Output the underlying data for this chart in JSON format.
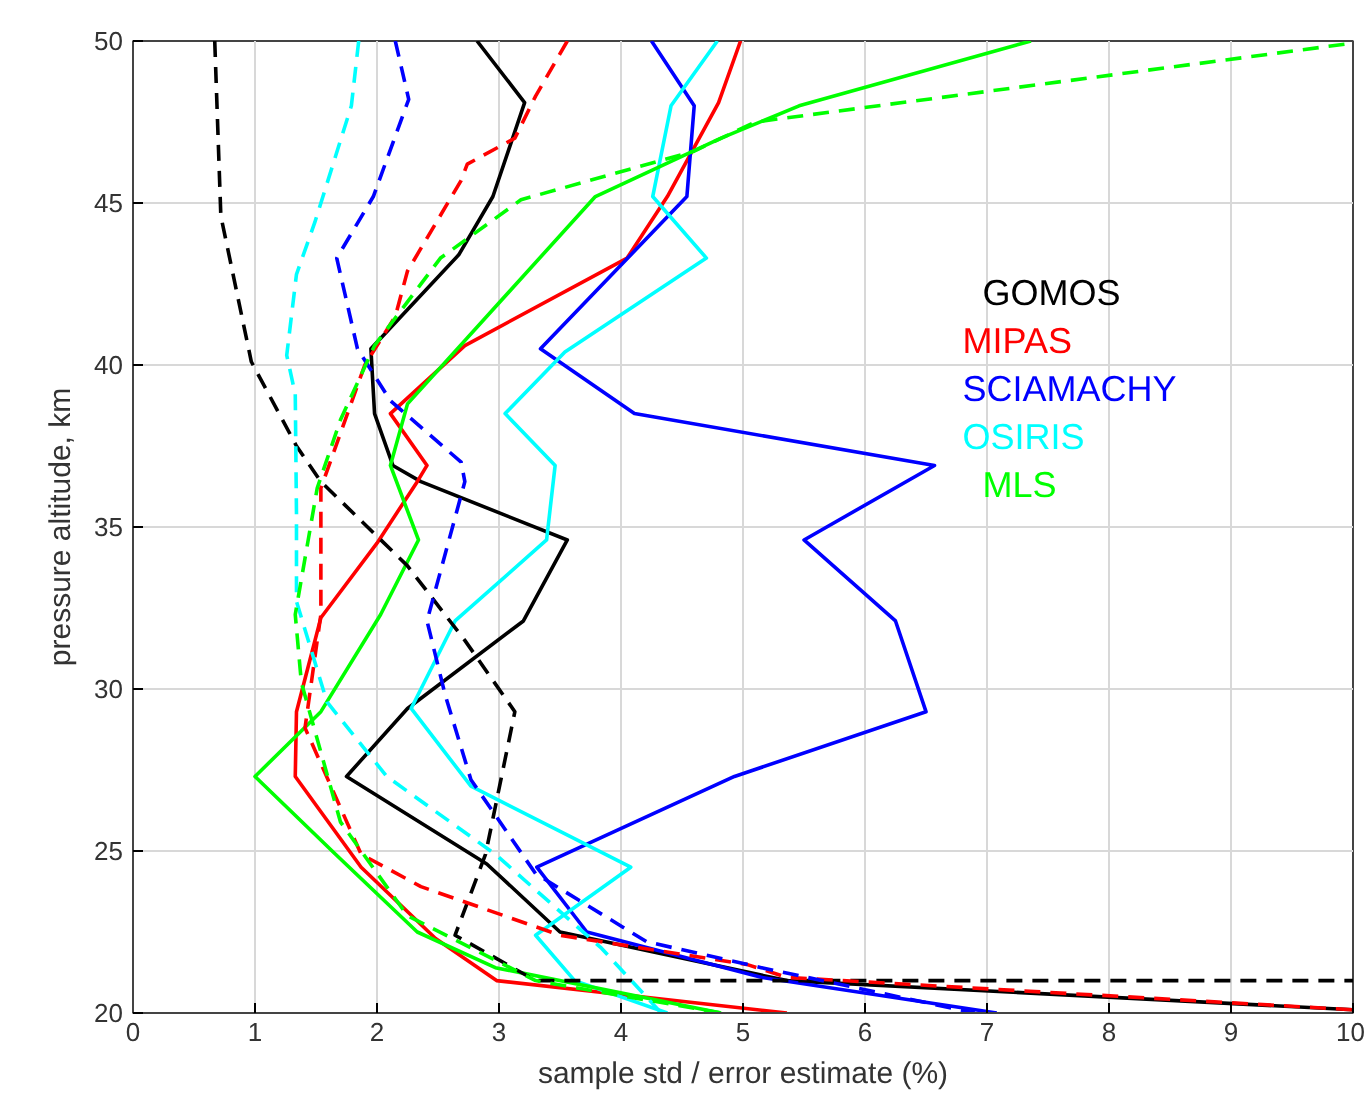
{
  "chart_data": {
    "type": "line",
    "xlabel": "sample std / error estimate (%)",
    "ylabel": "pressure altitude, km",
    "xlim": [
      0,
      10
    ],
    "ylim": [
      20,
      50
    ],
    "xticks": [
      0,
      1,
      2,
      3,
      4,
      5,
      6,
      7,
      8,
      9,
      10
    ],
    "yticks": [
      20,
      25,
      30,
      35,
      40,
      45,
      50
    ],
    "grid": true,
    "legend": "right",
    "marker": "none",
    "series": [
      {
        "name": "GOMOS",
        "color": "#000000",
        "line_style": "solid",
        "x": [
          2.82,
          3.21,
          2.95,
          2.67,
          1.95,
          1.98,
          2.13,
          2.36,
          3.56,
          3.2,
          2.25,
          1.75,
          2.9,
          3.5,
          5.36,
          10
        ],
        "values": [
          50,
          48.1,
          45.2,
          43.4,
          40.5,
          38.5,
          36.9,
          36.4,
          34.6,
          32.1,
          29.4,
          27.3,
          24.6,
          22.5,
          21.0,
          20.1
        ]
      },
      {
        "name": "MIPAS",
        "color": "#ff0000",
        "line_style": "solid",
        "x": [
          4.98,
          4.8,
          4.38,
          4.05,
          2.72,
          2.11,
          2.41,
          2.33,
          2.0,
          1.54,
          1.34,
          1.33,
          1.87,
          2.48,
          2.98,
          5.36
        ],
        "values": [
          50,
          48.1,
          45.2,
          43.3,
          40.6,
          38.5,
          36.9,
          36.4,
          34.5,
          32.2,
          29.3,
          27.3,
          24.5,
          22.3,
          21.0,
          20.0
        ]
      },
      {
        "name": "SCIAMACHY",
        "color": "#0000ff",
        "line_style": "solid",
        "x": [
          4.25,
          4.6,
          4.54,
          3.34,
          4.11,
          6.57,
          5.5,
          6.25,
          6.5,
          4.93,
          3.31,
          3.72,
          5.15,
          7.08
        ],
        "values": [
          50,
          48.0,
          45.2,
          40.5,
          38.5,
          36.9,
          34.6,
          32.1,
          29.3,
          27.3,
          24.5,
          22.5,
          21.1,
          20.0
        ]
      },
      {
        "name": "OSIRIS",
        "color": "#00ffff",
        "line_style": "solid",
        "x": [
          4.79,
          4.41,
          4.26,
          4.7,
          3.54,
          3.05,
          3.46,
          3.39,
          2.64,
          2.28,
          2.77,
          4.08,
          3.3,
          3.62,
          4.38
        ],
        "values": [
          50,
          48.0,
          45.2,
          43.3,
          40.4,
          38.5,
          36.9,
          34.6,
          32.1,
          29.4,
          27.0,
          24.5,
          22.4,
          21.0,
          20.0
        ]
      },
      {
        "name": "MLS",
        "color": "#00ff00",
        "line_style": "solid",
        "x": [
          7.36,
          5.46,
          4.82,
          3.79,
          2.25,
          2.11,
          2.34,
          2.03,
          1.54,
          1.0,
          1.66,
          2.33,
          2.97,
          4.82
        ],
        "values": [
          50,
          48.0,
          47.0,
          45.2,
          38.8,
          36.9,
          34.6,
          32.3,
          29.3,
          27.3,
          24.9,
          22.5,
          21.4,
          20.0
        ]
      },
      {
        "color": "#000000",
        "line_style": "dashed",
        "x": [
          0.67,
          0.72,
          0.97,
          1.34,
          1.54,
          2.25,
          2.72,
          3.13,
          2.89,
          2.64,
          3.3,
          10
        ],
        "values": [
          50,
          44.6,
          40.1,
          37.5,
          36.4,
          33.8,
          31.5,
          29.3,
          24.9,
          22.4,
          21.0,
          21.0
        ]
      },
      {
        "color": "#ff0000",
        "line_style": "dashed",
        "x": [
          3.56,
          3.3,
          3.13,
          2.74,
          2.69,
          2.25,
          2.15,
          1.9,
          1.54,
          1.54,
          1.41,
          1.87,
          2.36,
          3.5,
          5.03,
          5.36,
          10
        ],
        "values": [
          50,
          48.3,
          47.0,
          46.2,
          45.7,
          42.9,
          41.5,
          40.0,
          36.2,
          32.3,
          28.8,
          24.9,
          23.9,
          22.4,
          21.5,
          21.1,
          20.1
        ]
      },
      {
        "color": "#0000ff",
        "line_style": "dashed",
        "x": [
          2.15,
          2.26,
          1.97,
          1.67,
          1.84,
          2.11,
          2.69,
          2.72,
          2.41,
          2.56,
          2.77,
          3.3,
          4.21,
          5.15,
          6.9
        ],
        "values": [
          50,
          48.2,
          45.2,
          43.3,
          40.5,
          38.9,
          37.0,
          36.4,
          32.1,
          29.8,
          27.2,
          24.3,
          22.2,
          21.4,
          20.0
        ]
      },
      {
        "color": "#00ffff",
        "line_style": "dashed",
        "x": [
          1.85,
          1.79,
          1.49,
          1.34,
          1.26,
          1.33,
          1.34,
          1.34,
          1.59,
          2.08,
          2.97,
          3.84,
          4.33
        ],
        "values": [
          50,
          48.0,
          44.4,
          42.8,
          40.3,
          39.1,
          35.4,
          32.7,
          29.6,
          27.3,
          24.9,
          22.0,
          20.0
        ]
      },
      {
        "color": "#00ff00",
        "line_style": "dashed",
        "x": [
          9.93,
          5.1,
          4.6,
          3.18,
          2.52,
          1.98,
          1.7,
          1.51,
          1.33,
          1.38,
          1.7,
          2.25,
          3.3,
          4.82
        ],
        "values": [
          49.9,
          47.5,
          46.6,
          45.1,
          43.3,
          40.6,
          38.3,
          36.2,
          32.3,
          30.2,
          25.9,
          23.0,
          21.0,
          20.0
        ]
      }
    ]
  }
}
